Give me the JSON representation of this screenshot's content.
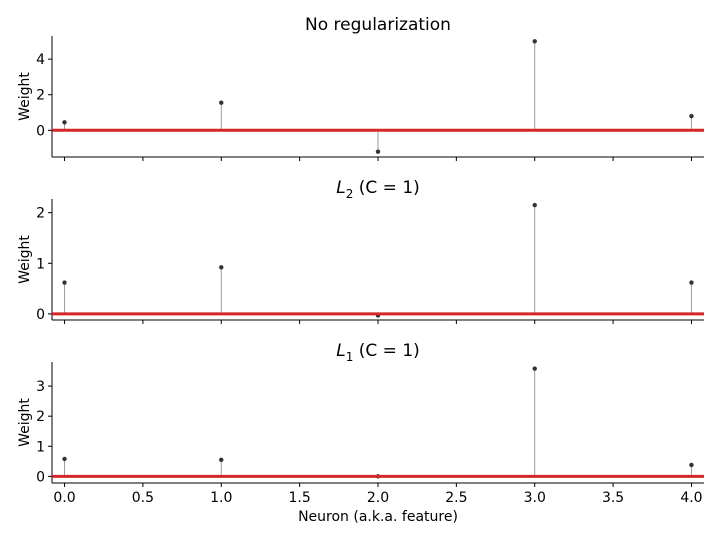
{
  "chart_data": [
    {
      "type": "stem",
      "title_main": "No regularization",
      "title_sub": "",
      "title_rest": "",
      "ylabel": "Weight",
      "xlabel": "",
      "x": [
        0,
        1,
        2,
        3,
        4
      ],
      "values": [
        0.45,
        1.55,
        -1.2,
        5.0,
        0.8
      ],
      "ylim": [
        -1.5,
        5.3
      ],
      "yticks": [
        0,
        2,
        4
      ],
      "xlim": [
        -0.08,
        4.08
      ],
      "xticks": [
        0.0,
        0.5,
        1.0,
        1.5,
        2.0,
        2.5,
        3.0,
        3.5,
        4.0
      ],
      "show_xtick_labels": false,
      "baseline_color": "#d62728"
    },
    {
      "type": "stem",
      "title_main": "L",
      "title_sub": "2",
      "title_rest": " (C = 1)",
      "ylabel": "Weight",
      "xlabel": "",
      "x": [
        0,
        1,
        2,
        3,
        4
      ],
      "values": [
        0.62,
        0.92,
        -0.03,
        2.15,
        0.62
      ],
      "ylim": [
        -0.12,
        2.27
      ],
      "yticks": [
        0,
        1,
        2
      ],
      "xlim": [
        -0.08,
        4.08
      ],
      "xticks": [
        0.0,
        0.5,
        1.0,
        1.5,
        2.0,
        2.5,
        3.0,
        3.5,
        4.0
      ],
      "show_xtick_labels": false,
      "baseline_color": "#d62728"
    },
    {
      "type": "stem",
      "title_main": "L",
      "title_sub": "1",
      "title_rest": " (C = 1)",
      "ylabel": "Weight",
      "xlabel": "Neuron (a.k.a. feature)",
      "x": [
        0,
        1,
        2,
        3,
        4
      ],
      "values": [
        0.58,
        0.55,
        0.0,
        3.58,
        0.38
      ],
      "ylim": [
        -0.22,
        3.8
      ],
      "yticks": [
        0,
        1,
        2,
        3
      ],
      "xlim": [
        -0.08,
        4.08
      ],
      "xticks": [
        0.0,
        0.5,
        1.0,
        1.5,
        2.0,
        2.5,
        3.0,
        3.5,
        4.0
      ],
      "xtick_labels": [
        "0.0",
        "0.5",
        "1.0",
        "1.5",
        "2.0",
        "2.5",
        "3.0",
        "3.5",
        "4.0"
      ],
      "show_xtick_labels": true,
      "baseline_color": "#d62728"
    }
  ]
}
